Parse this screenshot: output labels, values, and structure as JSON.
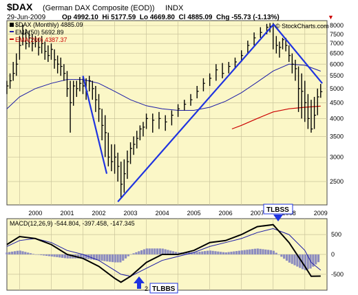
{
  "header": {
    "symbol": "$DAX",
    "name": "(German DAX Composite (EOD))",
    "exchange": "INDX",
    "date": "29-Jun-2009",
    "quote": "Op 4992.10  Hi 5177.59  Lo 4669.80  Cl 4885.09  Chg -55.73 (-1.13%)",
    "chg_arrow": "▼",
    "watermark": "© StockCharts.com",
    "colors": {
      "price": "#000000",
      "ema50": "#1a1aa6",
      "ema200": "#cc0000",
      "trend": "#1f33e0",
      "panel_bg": "#fbf7c7",
      "hist": "#8c8cbf",
      "chg": "#cc0000"
    }
  },
  "legend": [
    {
      "marker_color": "#000000",
      "label": "$DAX (Monthly) 4885.09"
    },
    {
      "marker_color": "#1a1aa6",
      "label": "EMA(50) 5692.89"
    },
    {
      "marker_color": "#cc0000",
      "label": "EMA(200) 4387.37"
    }
  ],
  "macd_legend": "MACD(12,26,9) -544.804, -397.458, -147.345",
  "annotations": {
    "tlbss_top": "TLBSS",
    "tlbbs_bottom": "TLBBS",
    "hidden_year": "2"
  },
  "chart_data": {
    "type": "line",
    "title": "$DAX (German DAX Composite (EOD)) INDX",
    "x_ticks": [
      "2000",
      "2001",
      "2002",
      "2003",
      "2004",
      "2005",
      "2006",
      "2007",
      "2008",
      "2009"
    ],
    "x_range": [
      1999.6,
      2009.7
    ],
    "y_ticks": [
      2500,
      3000,
      3500,
      4000,
      4500,
      5000,
      5500,
      6000,
      6500,
      7000,
      7500,
      8000
    ],
    "ylim": [
      2100,
      8300
    ],
    "y_scale": "log",
    "grid": true,
    "legend_position": "top-left",
    "series": [
      {
        "name": "$DAX (Monthly) 4885.09",
        "style": "price-bars",
        "x": [
          1999.6,
          1999.7,
          1999.8,
          1999.9,
          2000.0,
          2000.1,
          2000.2,
          2000.3,
          2000.4,
          2000.5,
          2000.6,
          2000.7,
          2000.8,
          2000.9,
          2001.0,
          2001.1,
          2001.2,
          2001.3,
          2001.4,
          2001.5,
          2001.6,
          2001.7,
          2001.8,
          2001.9,
          2002.0,
          2002.1,
          2002.2,
          2002.3,
          2002.4,
          2002.5,
          2002.6,
          2002.7,
          2002.8,
          2002.9,
          2003.0,
          2003.1,
          2003.2,
          2003.3,
          2003.4,
          2003.5,
          2003.6,
          2003.7,
          2003.8,
          2003.9,
          2004.0,
          2004.2,
          2004.4,
          2004.6,
          2004.8,
          2005.0,
          2005.2,
          2005.4,
          2005.6,
          2005.8,
          2006.0,
          2006.2,
          2006.4,
          2006.6,
          2006.8,
          2007.0,
          2007.2,
          2007.4,
          2007.6,
          2007.8,
          2007.9,
          2008.0,
          2008.1,
          2008.2,
          2008.3,
          2008.4,
          2008.5,
          2008.6,
          2008.7,
          2008.8,
          2008.9,
          2009.0,
          2009.1,
          2009.2,
          2009.3,
          2009.4,
          2009.5
        ],
        "close": [
          5100,
          5300,
          5600,
          6000,
          6900,
          7500,
          7000,
          7300,
          7000,
          7100,
          6800,
          7000,
          6600,
          6400,
          6700,
          6200,
          6000,
          5900,
          5600,
          5000,
          4500,
          5100,
          5000,
          5200,
          5100,
          4900,
          5300,
          5000,
          4600,
          4300,
          3800,
          3600,
          3000,
          2900,
          3000,
          2800,
          2450,
          2650,
          2900,
          3200,
          3300,
          3450,
          3700,
          3750,
          4000,
          3950,
          4000,
          3900,
          4100,
          4300,
          4450,
          4600,
          4900,
          5200,
          5400,
          5750,
          5600,
          5900,
          6100,
          6400,
          6900,
          7300,
          7600,
          7900,
          7950,
          8000,
          6900,
          6800,
          7200,
          6900,
          6400,
          6000,
          5800,
          5000,
          4900,
          4500,
          4000,
          3700,
          4100,
          4700,
          4885
        ],
        "high": [
          5300,
          5600,
          6100,
          6500,
          7400,
          8050,
          7800,
          7700,
          7500,
          7400,
          7300,
          7400,
          7100,
          6900,
          7000,
          6700,
          6400,
          6300,
          6000,
          5700,
          5300,
          5300,
          5300,
          5450,
          5450,
          5400,
          5500,
          5300,
          5100,
          4800,
          4300,
          4100,
          3600,
          3300,
          3300,
          3100,
          2900,
          2950,
          3150,
          3350,
          3500,
          3650,
          3800,
          3900,
          4150,
          4150,
          4200,
          4100,
          4250,
          4450,
          4600,
          4800,
          5100,
          5400,
          5600,
          6000,
          6050,
          6100,
          6300,
          6650,
          7150,
          7600,
          7900,
          8100,
          8150,
          8150,
          7400,
          7100,
          7300,
          7300,
          6900,
          6500,
          6200,
          5900,
          5600,
          5300,
          4800,
          4600,
          4700,
          5000,
          5177
        ],
        "low": [
          4800,
          5000,
          5300,
          5500,
          6200,
          6900,
          6700,
          6800,
          6600,
          6800,
          6400,
          6500,
          6200,
          6100,
          6200,
          5800,
          5600,
          5500,
          5300,
          4700,
          3600,
          4400,
          4700,
          4900,
          4800,
          4600,
          4900,
          4600,
          4200,
          3900,
          3400,
          3000,
          2800,
          2700,
          2650,
          2500,
          2200,
          2300,
          2550,
          2850,
          3050,
          3200,
          3400,
          3500,
          3700,
          3600,
          3700,
          3650,
          3800,
          4050,
          4250,
          4400,
          4650,
          4900,
          5100,
          5300,
          5400,
          5600,
          5800,
          6100,
          6500,
          6900,
          7300,
          7500,
          7600,
          6700,
          6500,
          6300,
          6700,
          6600,
          6100,
          5600,
          5300,
          4200,
          4000,
          3900,
          3700,
          3600,
          3700,
          4100,
          4669
        ]
      },
      {
        "name": "EMA(50) 5692.89",
        "x": [
          1999.6,
          2000.0,
          2000.5,
          2001.0,
          2001.5,
          2002.0,
          2002.5,
          2003.0,
          2003.5,
          2004.0,
          2004.5,
          2005.0,
          2005.5,
          2006.0,
          2006.5,
          2007.0,
          2007.5,
          2008.0,
          2008.5,
          2009.0,
          2009.5
        ],
        "y": [
          4300,
          4700,
          5000,
          5200,
          5350,
          5350,
          5200,
          4900,
          4600,
          4400,
          4300,
          4250,
          4250,
          4350,
          4550,
          4850,
          5250,
          5700,
          6000,
          5950,
          5693
        ]
      },
      {
        "name": "EMA(200) 4387.37",
        "x": [
          2006.7,
          2007.0,
          2007.5,
          2008.0,
          2008.5,
          2009.0,
          2009.5
        ],
        "y": [
          3700,
          3800,
          4000,
          4200,
          4300,
          4350,
          4387
        ]
      },
      {
        "name": "trendline-1",
        "x": [
          2002.0,
          2002.75
        ],
        "y": [
          5500,
          2650
        ]
      },
      {
        "name": "trendline-2",
        "x": [
          2003.1,
          2008.0
        ],
        "y": [
          2150,
          8050
        ]
      },
      {
        "name": "trendline-3",
        "x": [
          2008.0,
          2009.55
        ],
        "y": [
          8100,
          5200
        ]
      }
    ],
    "macd": {
      "legend": "MACD(12,26,9) -544.804, -397.458, -147.345",
      "y_ticks": [
        500,
        0,
        -500
      ],
      "ylim": [
        -900,
        900
      ],
      "x": [
        1999.6,
        2000.0,
        2000.5,
        2001.0,
        2001.5,
        2002.0,
        2002.5,
        2003.0,
        2003.2,
        2003.5,
        2004.0,
        2004.5,
        2005.0,
        2005.5,
        2006.0,
        2006.5,
        2007.0,
        2007.5,
        2008.0,
        2008.5,
        2009.0,
        2009.2,
        2009.5
      ],
      "macd": [
        250,
        450,
        400,
        250,
        0,
        -100,
        -300,
        -600,
        -700,
        -550,
        -200,
        0,
        0,
        100,
        300,
        350,
        500,
        700,
        750,
        300,
        -300,
        -550,
        -545
      ],
      "signal": [
        200,
        350,
        400,
        300,
        100,
        0,
        -150,
        -400,
        -500,
        -550,
        -350,
        -150,
        -50,
        50,
        200,
        300,
        400,
        550,
        650,
        500,
        100,
        -200,
        -397
      ],
      "histogram": [
        50,
        100,
        0,
        -50,
        -100,
        -100,
        -150,
        -200,
        -200,
        0,
        150,
        150,
        50,
        50,
        100,
        50,
        100,
        150,
        100,
        -200,
        -400,
        -350,
        -147
      ]
    }
  }
}
